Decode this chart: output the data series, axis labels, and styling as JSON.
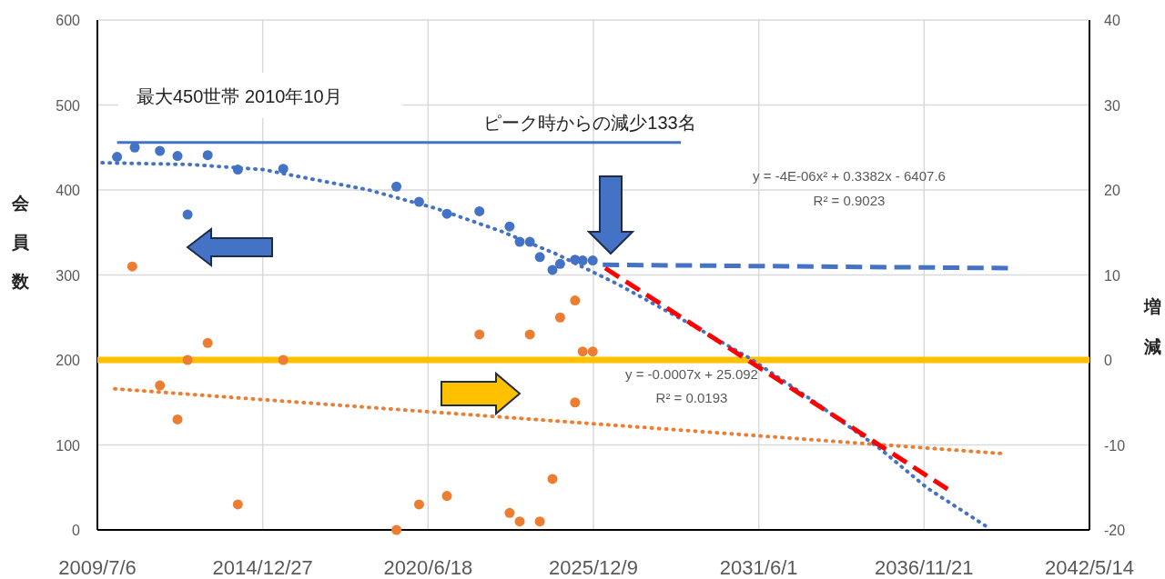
{
  "chart_data": {
    "type": "scatter",
    "ylabel": "会員数",
    "y2label": "増減",
    "xlim": [
      "2009-07-06",
      "2042-05-14"
    ],
    "xticks": [
      {
        "value": "2009-07-06",
        "label": "2009/7/6"
      },
      {
        "value": "2014-12-27",
        "label": "2014/12/27"
      },
      {
        "value": "2020-06-18",
        "label": "2020/6/18"
      },
      {
        "value": "2025-12-09",
        "label": "2025/12/9"
      },
      {
        "value": "2031-06-01",
        "label": "2031/6/1"
      },
      {
        "value": "2036-11-21",
        "label": "2036/11/21"
      },
      {
        "value": "2042-05-14",
        "label": "2042/5/14"
      }
    ],
    "ylim": [
      0,
      600
    ],
    "yticks": [
      0,
      100,
      200,
      300,
      400,
      500,
      600
    ],
    "y2lim": [
      -20,
      40
    ],
    "y2ticks": [
      -20,
      -10,
      0,
      10,
      20,
      30,
      40
    ],
    "grid": true,
    "marker": "circle",
    "series": [
      {
        "color": "#4472c4",
        "x": [
          "2010-03",
          "2010-10",
          "2011-08",
          "2012-03",
          "2012-07",
          "2013-03",
          "2014-03",
          "2015-09",
          "2019-06",
          "2020-03",
          "2021-02",
          "2022-03",
          "2023-03",
          "2023-07",
          "2023-11",
          "2024-03",
          "2024-08",
          "2024-11",
          "2025-05",
          "2025-08",
          "2025-12"
        ],
        "values": [
          439,
          450,
          446,
          440,
          371,
          441,
          424,
          425,
          404,
          386,
          372,
          375,
          357,
          339,
          339,
          321,
          306,
          313,
          318,
          317,
          317
        ]
      },
      {
        "color": "#ed7d31",
        "axis": "y2",
        "x": [
          "2010-09",
          "2011-08",
          "2012-03",
          "2012-07",
          "2013-03",
          "2014-03",
          "2015-09",
          "2019-06",
          "2020-03",
          "2021-02",
          "2022-03",
          "2023-03",
          "2023-07",
          "2023-11",
          "2024-03",
          "2024-08",
          "2024-11",
          "2025-05",
          "2025-05",
          "2025-08",
          "2025-12"
        ],
        "values": [
          11,
          -3,
          -7,
          0,
          2,
          -17,
          0,
          -20,
          -17,
          -16,
          3,
          -18,
          -19,
          3,
          -19,
          -14,
          5,
          7,
          -5,
          1,
          1
        ]
      },
      {
        "type": "line",
        "color": "#4472c4",
        "line_style": "dotted",
        "marker": "none",
        "x": [
          "2009-09",
          "2012-08",
          "2015-01",
          "2016-08",
          "2018-07",
          "2020-10",
          "2022-12",
          "2024-10",
          "2026-10",
          "2029-03",
          "2031-03",
          "2033-03",
          "2035-06",
          "2037-01",
          "2038-12"
        ],
        "values": [
          432,
          430,
          424,
          413,
          400,
          378,
          351,
          324,
          289,
          242,
          201,
          153,
          96,
          49,
          5
        ]
      },
      {
        "type": "line",
        "color": "#ed7d31",
        "axis": "y2",
        "line_style": "dotted",
        "marker": "none",
        "x": [
          "2010-02",
          "2025-12",
          "2039-06"
        ],
        "values": [
          -3.4,
          -7.5,
          -11
        ]
      },
      {
        "type": "line",
        "color": "#4472c4",
        "line_style": "dashed",
        "marker": "none",
        "x": [
          "2026-04",
          "2039-09"
        ],
        "values": [
          312,
          308
        ]
      },
      {
        "type": "line",
        "color": "#ff0000",
        "line_style": "dashed",
        "marker": "none",
        "x": [
          "2026-05",
          "2037-09"
        ],
        "values": [
          308,
          48
        ]
      },
      {
        "type": "line",
        "color": "#4472c4",
        "line_style": "solid",
        "marker": "none",
        "x": [
          "2010-03",
          "2028-11"
        ],
        "values": [
          456,
          456
        ]
      }
    ],
    "ref_lines": [
      {
        "axis": "y2",
        "value": 0,
        "color": "#ffc000"
      }
    ],
    "annotations": [
      "最大450世帯 2010年10月",
      "ピーク時からの減少133名",
      "y = -4E-06x² + 0.3382x - 6407.6",
      "R² = 0.9023",
      "y = -0.0007x + 25.092",
      "R² = 0.0193"
    ]
  }
}
